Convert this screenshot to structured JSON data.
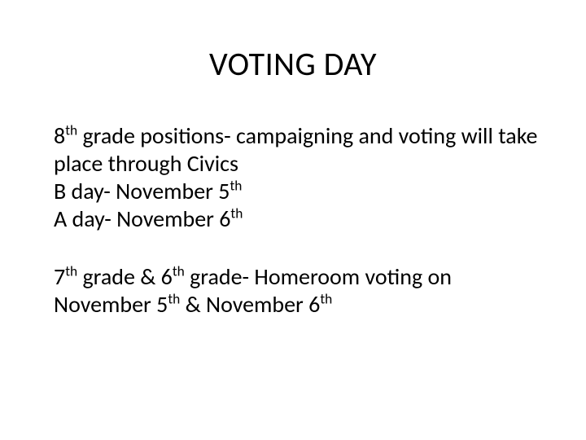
{
  "slide": {
    "title": "VOTING DAY",
    "title_fontsize": 40,
    "title_color": "#000000",
    "body_fontsize": 28,
    "body_color": "#000000",
    "background_color": "#ffffff",
    "paragraphs": [
      {
        "lines": [
          {
            "pre": "8",
            "sup": "th",
            "post": " grade positions- campaigning and voting will take place through Civics"
          },
          {
            "pre": "B day- November 5",
            "sup": "th",
            "post": ""
          },
          {
            "pre": "A day- November 6",
            "sup": "th",
            "post": ""
          }
        ]
      },
      {
        "lines": [
          {
            "pre": "7",
            "sup": "th",
            "post": " grade & 6",
            "sup2": "th",
            "post2": " grade- Homeroom voting on November 5",
            "sup3": "th",
            "post3": " & November 6",
            "sup4": "th",
            "post4": ""
          }
        ]
      }
    ]
  }
}
